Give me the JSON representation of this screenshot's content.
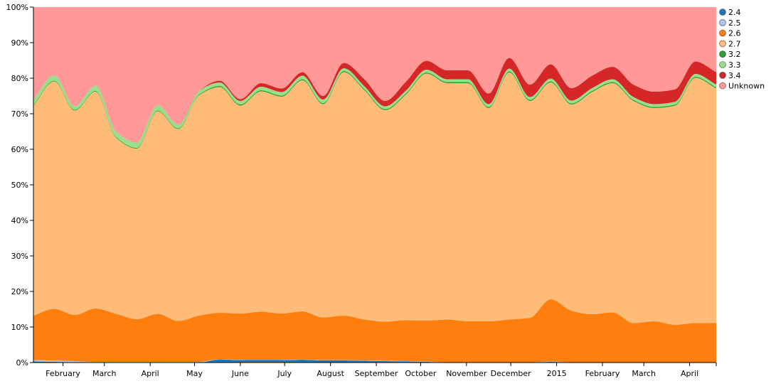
{
  "chart_data": {
    "type": "area",
    "stacked": "normalized",
    "grid": false,
    "legend_position": "right",
    "ylim": [
      0,
      100
    ],
    "y_ticks": [
      "0%",
      "10%",
      "20%",
      "30%",
      "40%",
      "50%",
      "60%",
      "70%",
      "80%",
      "90%",
      "100%"
    ],
    "x_range": [
      "2014-01-12",
      "2015-04-19"
    ],
    "x_ticks": [
      {
        "label": "February",
        "date": "2014-02-01"
      },
      {
        "label": "March",
        "date": "2014-03-01"
      },
      {
        "label": "April",
        "date": "2014-04-01"
      },
      {
        "label": "May",
        "date": "2014-05-01"
      },
      {
        "label": "June",
        "date": "2014-06-01"
      },
      {
        "label": "July",
        "date": "2014-07-01"
      },
      {
        "label": "August",
        "date": "2014-08-01"
      },
      {
        "label": "September",
        "date": "2014-09-01"
      },
      {
        "label": "October",
        "date": "2014-10-01"
      },
      {
        "label": "November",
        "date": "2014-11-01"
      },
      {
        "label": "December",
        "date": "2014-12-01"
      },
      {
        "label": "2015",
        "date": "2015-01-01"
      },
      {
        "label": "February",
        "date": "2015-02-01"
      },
      {
        "label": "March",
        "date": "2015-03-01"
      },
      {
        "label": "April",
        "date": "2015-04-01"
      }
    ],
    "x": [
      "2014-01-12",
      "2014-01-26",
      "2014-02-09",
      "2014-02-23",
      "2014-03-09",
      "2014-03-23",
      "2014-04-06",
      "2014-04-20",
      "2014-05-04",
      "2014-05-18",
      "2014-06-01",
      "2014-06-15",
      "2014-06-29",
      "2014-07-13",
      "2014-07-27",
      "2014-08-10",
      "2014-08-24",
      "2014-09-07",
      "2014-09-21",
      "2014-10-05",
      "2014-10-19",
      "2014-11-02",
      "2014-11-16",
      "2014-11-30",
      "2014-12-14",
      "2014-12-28",
      "2015-01-11",
      "2015-01-25",
      "2015-02-08",
      "2015-02-22",
      "2015-03-08",
      "2015-03-22",
      "2015-04-05",
      "2015-04-19"
    ],
    "series": [
      {
        "name": "2.4",
        "color": "#1f77b4",
        "values": [
          0.3,
          0.2,
          0.1,
          0.0,
          0.0,
          0.0,
          0.0,
          0.0,
          0.0,
          0.9,
          0.7,
          0.7,
          0.7,
          0.8,
          0.6,
          0.6,
          0.5,
          0.4,
          0.3,
          0.2,
          0.0,
          0.0,
          0.0,
          0.0,
          0.0,
          0.2,
          0.0,
          0.0,
          0.0,
          0.0,
          0.0,
          0.0,
          0.0,
          0.0
        ]
      },
      {
        "name": "2.5",
        "color": "#aec7e8",
        "values": [
          0.4,
          0.4,
          0.3,
          0.2,
          0.2,
          0.2,
          0.2,
          0.2,
          0.2,
          0.1,
          0.1,
          0.1,
          0.1,
          0.1,
          0.1,
          0.1,
          0.1,
          0.1,
          0.1,
          0.1,
          0.1,
          0.1,
          0.1,
          0.1,
          0.1,
          0.1,
          0.1,
          0.1,
          0.1,
          0.1,
          0.1,
          0.1,
          0.1,
          0.1
        ]
      },
      {
        "name": "2.6",
        "color": "#ff7f0e",
        "values": [
          12.5,
          14.5,
          13.0,
          15.0,
          13.5,
          12.0,
          13.5,
          11.5,
          13.0,
          13.0,
          13.0,
          13.5,
          13.0,
          13.5,
          12.0,
          12.5,
          11.5,
          11.0,
          11.5,
          11.5,
          12.0,
          11.5,
          11.5,
          12.0,
          12.5,
          17.5,
          14.5,
          13.5,
          14.0,
          11.0,
          11.5,
          10.5,
          11.0,
          11.0
        ]
      },
      {
        "name": "2.7",
        "color": "#ffbb78",
        "values": [
          59.0,
          64.0,
          57.5,
          61.0,
          49.5,
          48.0,
          57.0,
          54.0,
          62.0,
          63.5,
          58.5,
          62.0,
          61.0,
          65.0,
          60.0,
          68.5,
          64.5,
          59.5,
          63.5,
          69.5,
          66.5,
          67.0,
          60.0,
          69.5,
          61.0,
          61.0,
          58.0,
          62.5,
          64.5,
          62.5,
          60.0,
          61.5,
          69.0,
          66.0
        ]
      },
      {
        "name": "3.2",
        "color": "#2ca02c",
        "values": [
          0.2,
          0.2,
          0.2,
          0.2,
          0.2,
          0.2,
          0.2,
          0.2,
          0.2,
          0.3,
          0.3,
          0.3,
          0.3,
          0.3,
          0.3,
          0.3,
          0.3,
          0.3,
          0.3,
          0.3,
          0.3,
          0.3,
          0.3,
          0.3,
          0.3,
          0.3,
          0.3,
          0.3,
          0.3,
          0.3,
          0.3,
          0.3,
          0.3,
          0.3
        ]
      },
      {
        "name": "3.3",
        "color": "#98df8a",
        "values": [
          1.5,
          1.5,
          1.0,
          1.5,
          1.5,
          1.5,
          1.5,
          1.0,
          1.0,
          1.0,
          1.0,
          1.0,
          1.0,
          1.0,
          1.0,
          0.8,
          0.8,
          0.8,
          0.8,
          0.8,
          0.8,
          0.8,
          0.8,
          0.8,
          0.8,
          0.8,
          0.8,
          0.8,
          0.8,
          0.8,
          0.8,
          0.8,
          0.8,
          0.8
        ]
      },
      {
        "name": "3.4",
        "color": "#d62728",
        "values": [
          0.0,
          0.0,
          0.0,
          0.0,
          0.0,
          0.0,
          0.0,
          0.0,
          0.0,
          0.5,
          0.5,
          1.0,
          1.0,
          1.0,
          1.0,
          1.5,
          2.0,
          1.5,
          2.5,
          2.5,
          2.5,
          2.5,
          3.0,
          3.0,
          3.5,
          4.0,
          3.5,
          3.5,
          3.5,
          3.5,
          3.5,
          3.5,
          3.5,
          3.5
        ]
      },
      {
        "name": "Unknown",
        "color": "#ff9896",
        "values": [
          26.1,
          19.2,
          27.9,
          22.1,
          35.1,
          38.1,
          27.6,
          33.1,
          23.6,
          20.7,
          25.9,
          21.4,
          22.9,
          18.3,
          25.0,
          15.7,
          20.3,
          26.4,
          21.0,
          15.1,
          17.8,
          17.8,
          24.3,
          14.3,
          21.8,
          16.1,
          22.8,
          19.3,
          16.8,
          21.8,
          23.8,
          23.1,
          15.3,
          18.3
        ]
      }
    ]
  }
}
